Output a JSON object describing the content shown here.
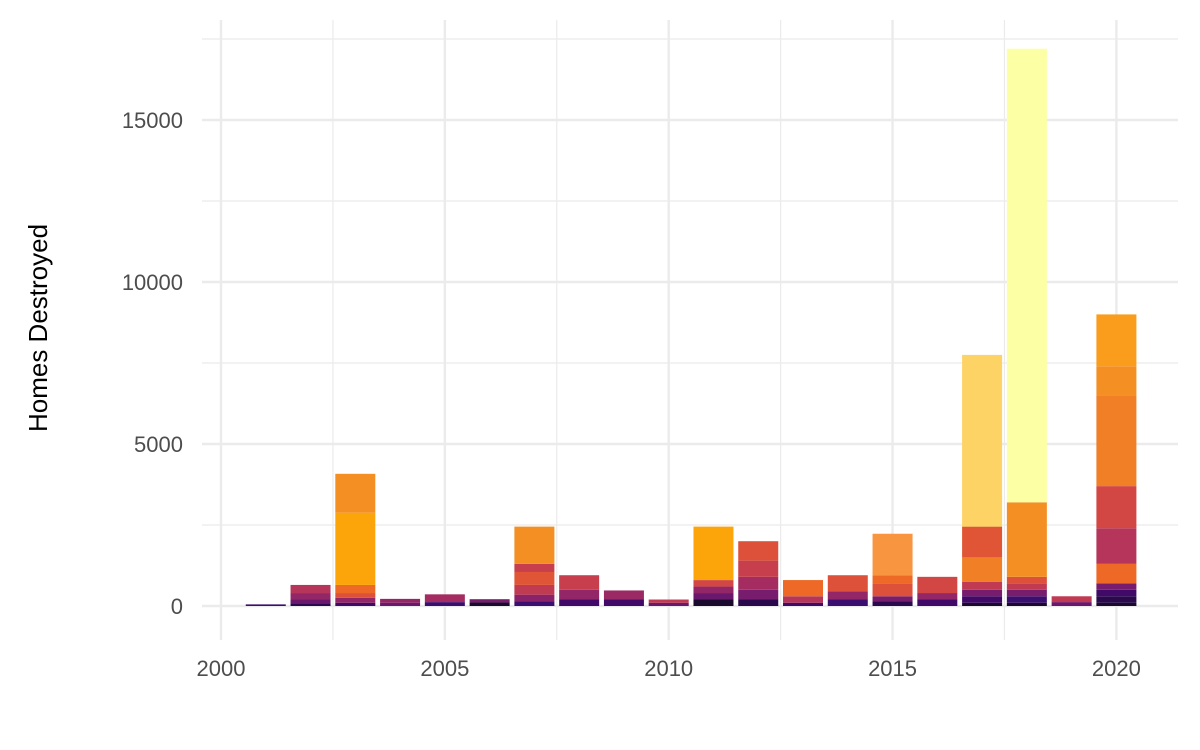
{
  "chart_data": {
    "type": "bar",
    "stacked": true,
    "title": "",
    "xlabel": "",
    "ylabel": "Homes Destroyed",
    "xlim": [
      2000,
      2021.5
    ],
    "ylim": [
      -800,
      18000
    ],
    "x_ticks": [
      2000,
      2005,
      2010,
      2015,
      2020
    ],
    "x_tick_labels": [
      "2000",
      "2005",
      "2010",
      "2015",
      "2020"
    ],
    "y_ticks": [
      0,
      5000,
      10000,
      15000
    ],
    "y_tick_labels": [
      "0",
      "5000",
      "10000",
      "15000"
    ],
    "grid": true,
    "legend": "none",
    "palette": "inferno (dark purple = small, pale yellow = large)",
    "bars": [
      {
        "year": 2001,
        "total": 50,
        "segments": [
          {
            "value": 50,
            "color": "#3b0f70"
          }
        ]
      },
      {
        "year": 2002,
        "total": 650,
        "segments": [
          {
            "value": 80,
            "color": "#2a0a4d"
          },
          {
            "value": 120,
            "color": "#6a176e"
          },
          {
            "value": 200,
            "color": "#932667"
          },
          {
            "value": 250,
            "color": "#b5365a"
          }
        ]
      },
      {
        "year": 2003,
        "total": 4080,
        "segments": [
          {
            "value": 100,
            "color": "#420a68"
          },
          {
            "value": 150,
            "color": "#932667"
          },
          {
            "value": 150,
            "color": "#dd513a"
          },
          {
            "value": 250,
            "color": "#ed6925"
          },
          {
            "value": 2230,
            "color": "#fca50a"
          },
          {
            "value": 1200,
            "color": "#f48f24"
          }
        ]
      },
      {
        "year": 2004,
        "total": 220,
        "segments": [
          {
            "value": 100,
            "color": "#6a176e"
          },
          {
            "value": 120,
            "color": "#932667"
          }
        ]
      },
      {
        "year": 2005,
        "total": 360,
        "segments": [
          {
            "value": 120,
            "color": "#3b0f70"
          },
          {
            "value": 240,
            "color": "#a52c60"
          }
        ]
      },
      {
        "year": 2006,
        "total": 210,
        "segments": [
          {
            "value": 110,
            "color": "#1a0b2e"
          },
          {
            "value": 100,
            "color": "#781c6d"
          }
        ]
      },
      {
        "year": 2007,
        "total": 2450,
        "segments": [
          {
            "value": 150,
            "color": "#3b0f70"
          },
          {
            "value": 200,
            "color": "#8a226a"
          },
          {
            "value": 300,
            "color": "#c03a51"
          },
          {
            "value": 400,
            "color": "#e05536"
          },
          {
            "value": 250,
            "color": "#c73e4c"
          },
          {
            "value": 1150,
            "color": "#f48f24"
          }
        ]
      },
      {
        "year": 2008,
        "total": 950,
        "segments": [
          {
            "value": 200,
            "color": "#420a68"
          },
          {
            "value": 300,
            "color": "#932667"
          },
          {
            "value": 450,
            "color": "#c73e4c"
          }
        ]
      },
      {
        "year": 2009,
        "total": 480,
        "segments": [
          {
            "value": 200,
            "color": "#420a68"
          },
          {
            "value": 280,
            "color": "#9b2964"
          }
        ]
      },
      {
        "year": 2010,
        "total": 200,
        "segments": [
          {
            "value": 100,
            "color": "#6a176e"
          },
          {
            "value": 100,
            "color": "#c03a51"
          }
        ]
      },
      {
        "year": 2011,
        "total": 2450,
        "segments": [
          {
            "value": 200,
            "color": "#1a0b2e"
          },
          {
            "value": 200,
            "color": "#6a176e"
          },
          {
            "value": 200,
            "color": "#932667"
          },
          {
            "value": 200,
            "color": "#d24644"
          },
          {
            "value": 1650,
            "color": "#fca50a"
          }
        ]
      },
      {
        "year": 2012,
        "total": 2000,
        "segments": [
          {
            "value": 200,
            "color": "#2a0a4d"
          },
          {
            "value": 300,
            "color": "#781c6d"
          },
          {
            "value": 400,
            "color": "#a52c60"
          },
          {
            "value": 500,
            "color": "#c73e4c"
          },
          {
            "value": 600,
            "color": "#dd513a"
          }
        ]
      },
      {
        "year": 2013,
        "total": 800,
        "segments": [
          {
            "value": 100,
            "color": "#420a68"
          },
          {
            "value": 200,
            "color": "#b5365a"
          },
          {
            "value": 500,
            "color": "#ed6925"
          }
        ]
      },
      {
        "year": 2014,
        "total": 950,
        "segments": [
          {
            "value": 200,
            "color": "#3b0f70"
          },
          {
            "value": 250,
            "color": "#932667"
          },
          {
            "value": 500,
            "color": "#dd513a"
          }
        ]
      },
      {
        "year": 2015,
        "total": 2230,
        "segments": [
          {
            "value": 150,
            "color": "#2a0a4d"
          },
          {
            "value": 150,
            "color": "#781c6d"
          },
          {
            "value": 400,
            "color": "#dd513a"
          },
          {
            "value": 250,
            "color": "#ed6925"
          },
          {
            "value": 1280,
            "color": "#f89540"
          }
        ]
      },
      {
        "year": 2016,
        "total": 900,
        "segments": [
          {
            "value": 200,
            "color": "#420a68"
          },
          {
            "value": 200,
            "color": "#932667"
          },
          {
            "value": 500,
            "color": "#d24644"
          }
        ]
      },
      {
        "year": 2017,
        "total": 7750,
        "segments": [
          {
            "value": 100,
            "color": "#1a0b2e"
          },
          {
            "value": 200,
            "color": "#420a68"
          },
          {
            "value": 200,
            "color": "#781c6d"
          },
          {
            "value": 250,
            "color": "#c03a51"
          },
          {
            "value": 750,
            "color": "#f07f26"
          },
          {
            "value": 950,
            "color": "#e05536"
          },
          {
            "value": 5300,
            "color": "#fed366"
          }
        ]
      },
      {
        "year": 2018,
        "total": 17200,
        "segments": [
          {
            "value": 100,
            "color": "#1a0b2e"
          },
          {
            "value": 200,
            "color": "#3b0f70"
          },
          {
            "value": 200,
            "color": "#781c6d"
          },
          {
            "value": 200,
            "color": "#c03a51"
          },
          {
            "value": 200,
            "color": "#dd513a"
          },
          {
            "value": 2300,
            "color": "#f48f24"
          },
          {
            "value": 14000,
            "color": "#fcffa4"
          }
        ]
      },
      {
        "year": 2019,
        "total": 300,
        "segments": [
          {
            "value": 120,
            "color": "#6a176e"
          },
          {
            "value": 180,
            "color": "#c03a51"
          }
        ]
      },
      {
        "year": 2020,
        "total": 9000,
        "segments": [
          {
            "value": 100,
            "color": "#1a0b2e"
          },
          {
            "value": 200,
            "color": "#2a0a4d"
          },
          {
            "value": 200,
            "color": "#420a68"
          },
          {
            "value": 200,
            "color": "#781c6d"
          },
          {
            "value": 600,
            "color": "#ed6925"
          },
          {
            "value": 1100,
            "color": "#b5365a"
          },
          {
            "value": 1300,
            "color": "#d24644"
          },
          {
            "value": 2800,
            "color": "#f07f26"
          },
          {
            "value": 900,
            "color": "#f48f24"
          },
          {
            "value": 1600,
            "color": "#fa9c1c"
          }
        ]
      }
    ]
  }
}
